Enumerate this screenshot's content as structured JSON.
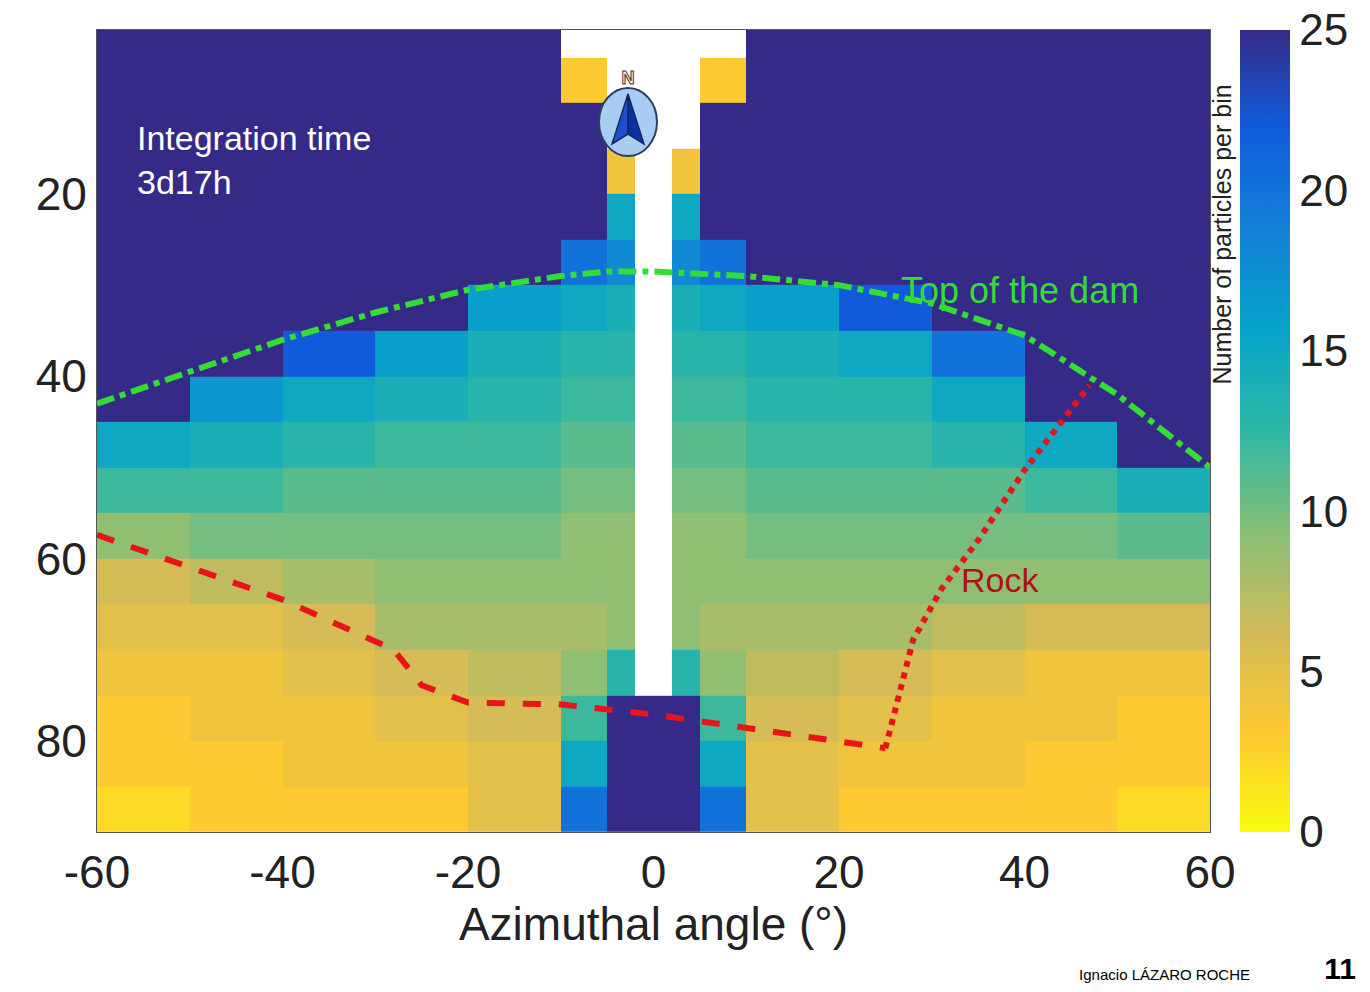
{
  "chart_data": {
    "type": "heatmap",
    "x_label": "Azimuthal angle (°)",
    "xlim": [
      -60,
      60
    ],
    "xticks": [
      -60,
      -40,
      -20,
      0,
      20,
      40,
      60
    ],
    "ylim": [
      90,
      2
    ],
    "yticks": [
      20,
      40,
      60,
      80
    ],
    "grid": false,
    "x_edges": [
      -60,
      -50,
      -40,
      -30,
      -20,
      -10,
      -5,
      -2,
      2,
      5,
      10,
      20,
      30,
      40,
      50,
      60
    ],
    "y_edges": [
      0,
      5,
      10,
      15,
      20,
      25,
      30,
      35,
      40,
      45,
      50,
      55,
      60,
      65,
      70,
      75,
      80,
      85,
      90
    ],
    "z": [
      [
        40,
        40,
        40,
        40,
        40,
        null,
        null,
        null,
        null,
        null,
        40,
        40,
        40,
        40,
        40
      ],
      [
        40,
        40,
        40,
        40,
        40,
        3,
        null,
        null,
        null,
        3,
        40,
        40,
        40,
        40,
        40
      ],
      [
        40,
        40,
        40,
        40,
        40,
        30,
        null,
        null,
        null,
        30,
        40,
        40,
        40,
        40,
        40
      ],
      [
        40,
        40,
        40,
        40,
        40,
        40,
        4,
        null,
        4,
        40,
        40,
        40,
        40,
        40,
        40
      ],
      [
        40,
        40,
        40,
        40,
        40,
        30,
        15,
        null,
        15,
        30,
        40,
        40,
        40,
        40,
        40
      ],
      [
        40,
        40,
        40,
        35,
        25,
        20,
        18,
        null,
        18,
        20,
        25,
        35,
        40,
        40,
        40
      ],
      [
        40,
        40,
        35,
        25,
        16,
        15,
        14,
        null,
        14,
        15,
        16,
        22,
        35,
        40,
        40
      ],
      [
        40,
        35,
        22,
        16,
        14,
        13,
        13,
        null,
        13,
        13,
        14,
        15,
        20,
        35,
        40
      ],
      [
        25,
        17,
        15,
        14,
        13,
        12,
        12,
        null,
        12,
        12,
        13,
        13,
        15,
        25,
        40
      ],
      [
        15,
        14,
        13,
        12,
        12,
        11,
        11,
        null,
        11,
        11,
        12,
        12,
        13,
        15,
        25
      ],
      [
        12,
        12,
        11,
        11,
        11,
        10,
        10,
        null,
        10,
        10,
        11,
        11,
        11,
        12,
        14
      ],
      [
        9,
        10,
        10,
        10,
        10,
        9,
        9,
        null,
        9,
        9,
        10,
        10,
        10,
        10,
        11
      ],
      [
        6,
        7,
        8,
        9,
        9,
        9,
        9,
        null,
        9,
        9,
        9,
        9,
        9,
        9,
        9
      ],
      [
        5,
        5,
        6,
        8,
        8,
        8,
        9,
        null,
        9,
        8,
        8,
        8,
        7,
        6,
        6
      ],
      [
        4,
        4,
        5,
        6,
        7,
        9,
        13,
        null,
        13,
        9,
        7,
        6,
        5,
        4,
        4
      ],
      [
        3,
        4,
        4,
        5,
        6,
        12,
        25,
        30,
        25,
        12,
        6,
        5,
        4,
        4,
        3
      ],
      [
        3,
        3,
        4,
        4,
        5,
        15,
        40,
        40,
        40,
        15,
        5,
        4,
        4,
        3,
        3
      ],
      [
        2,
        3,
        3,
        3,
        5,
        20,
        40,
        40,
        40,
        20,
        5,
        3,
        3,
        3,
        2
      ]
    ],
    "colorbar": {
      "title": "Number of particles per bin",
      "zlim": [
        0,
        25
      ],
      "zticks": [
        0,
        5,
        10,
        15,
        20,
        25
      ]
    },
    "series": [
      {
        "name": "Top of the dam",
        "type": "line",
        "color": "#33dd33",
        "line_style": "dashdot",
        "x": [
          -60,
          -50,
          -40,
          -30,
          -20,
          -10,
          -5,
          0,
          10,
          20,
          30,
          40,
          50,
          60
        ],
        "values": [
          43,
          39.5,
          36,
          33,
          30.5,
          29,
          28.5,
          28.5,
          29,
          30,
          32,
          35.5,
          42,
          50
        ]
      },
      {
        "name": "Rock",
        "type": "line",
        "color": "#e8141a",
        "line_style": "dash",
        "x": [
          -60,
          -40,
          -28,
          -25,
          -20,
          -10,
          0,
          10,
          20,
          25
        ],
        "values": [
          57.4,
          64.5,
          70,
          73.9,
          75.8,
          76,
          77.1,
          78.6,
          80.1,
          80.8
        ]
      },
      {
        "name": "Rock",
        "type": "line",
        "color": "#e8141a",
        "line_style": "dot",
        "x": [
          25,
          28,
          31,
          35,
          40,
          47
        ],
        "values": [
          80.8,
          68.9,
          63.4,
          58,
          50.3,
          41
        ]
      }
    ],
    "annotations": [
      {
        "text": [
          "Integration time",
          "3d17h"
        ]
      }
    ],
    "compass": "N",
    "footer": {
      "author": "Ignacio LÁZARO ROCHE",
      "page": "11"
    }
  }
}
